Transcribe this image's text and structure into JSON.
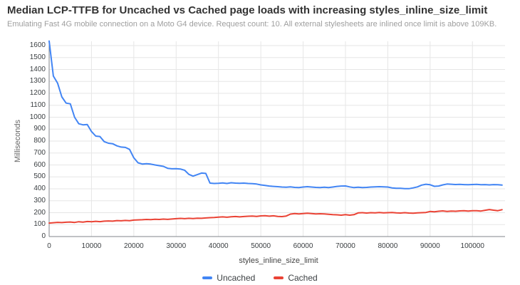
{
  "chart_data": {
    "type": "line",
    "title": "Median LCP-TTFB for Uncached vs Cached page loads with increasing styles_inline_size_limit",
    "subtitle": "Emulating Fast 4G mobile connection on a Moto G4 device. Request count: 10. All external stylesheets are inlined once limit is above 109KB.",
    "xlabel": "styles_inline_size_limit",
    "ylabel": "Milliseconds",
    "xlim": [
      0,
      107700
    ],
    "ylim": [
      0,
      1600
    ],
    "x_ticks": [
      0,
      10000,
      20000,
      30000,
      40000,
      50000,
      60000,
      70000,
      80000,
      90000,
      100000
    ],
    "y_ticks": [
      0,
      100,
      200,
      300,
      400,
      500,
      600,
      700,
      800,
      900,
      1000,
      1100,
      1200,
      1300,
      1400,
      1500,
      1600
    ],
    "grid": true,
    "legend_position": "bottom",
    "x_start": 0,
    "x_step": 1000,
    "colors": {
      "grid": "#e6e6e6",
      "axis": "#80868b",
      "title": "#333333",
      "subtitle": "#9e9e9e",
      "tick": "#3c4043",
      "axis_title": "#666666"
    },
    "series": [
      {
        "name": "Uncached",
        "color": "#4285f4",
        "values": [
          1638,
          1345,
          1285,
          1170,
          1118,
          1112,
          1000,
          945,
          936,
          939,
          880,
          842,
          838,
          795,
          782,
          778,
          760,
          750,
          747,
          730,
          660,
          618,
          608,
          611,
          607,
          600,
          594,
          588,
          572,
          568,
          569,
          566,
          556,
          521,
          506,
          519,
          532,
          529,
          448,
          445,
          446,
          449,
          445,
          451,
          448,
          446,
          448,
          445,
          443,
          440,
          433,
          428,
          423,
          420,
          418,
          415,
          413,
          416,
          412,
          410,
          415,
          418,
          415,
          412,
          411,
          413,
          410,
          415,
          420,
          423,
          424,
          416,
          410,
          413,
          411,
          412,
          415,
          416,
          418,
          416,
          415,
          408,
          405,
          404,
          402,
          401,
          408,
          416,
          431,
          438,
          434,
          421,
          423,
          433,
          440,
          438,
          436,
          437,
          435,
          434,
          436,
          437,
          434,
          435,
          433,
          435,
          434,
          431
        ]
      },
      {
        "name": "Cached",
        "color": "#ea4335",
        "values": [
          113,
          116,
          119,
          117,
          120,
          122,
          118,
          124,
          121,
          126,
          124,
          128,
          125,
          129,
          131,
          129,
          134,
          132,
          135,
          133,
          138,
          140,
          141,
          143,
          142,
          145,
          143,
          146,
          144,
          147,
          150,
          152,
          150,
          153,
          151,
          154,
          153,
          156,
          158,
          160,
          163,
          165,
          162,
          166,
          168,
          165,
          168,
          170,
          172,
          169,
          173,
          175,
          171,
          174,
          169,
          167,
          172,
          188,
          192,
          189,
          192,
          195,
          192,
          189,
          191,
          189,
          187,
          184,
          182,
          179,
          184,
          179,
          183,
          198,
          200,
          197,
          200,
          198,
          201,
          199,
          200,
          201,
          198,
          197,
          200,
          197,
          196,
          198,
          200,
          202,
          210,
          207,
          212,
          215,
          211,
          214,
          212,
          215,
          216,
          213,
          216,
          217,
          214,
          220,
          226,
          221,
          217,
          225
        ]
      }
    ]
  }
}
